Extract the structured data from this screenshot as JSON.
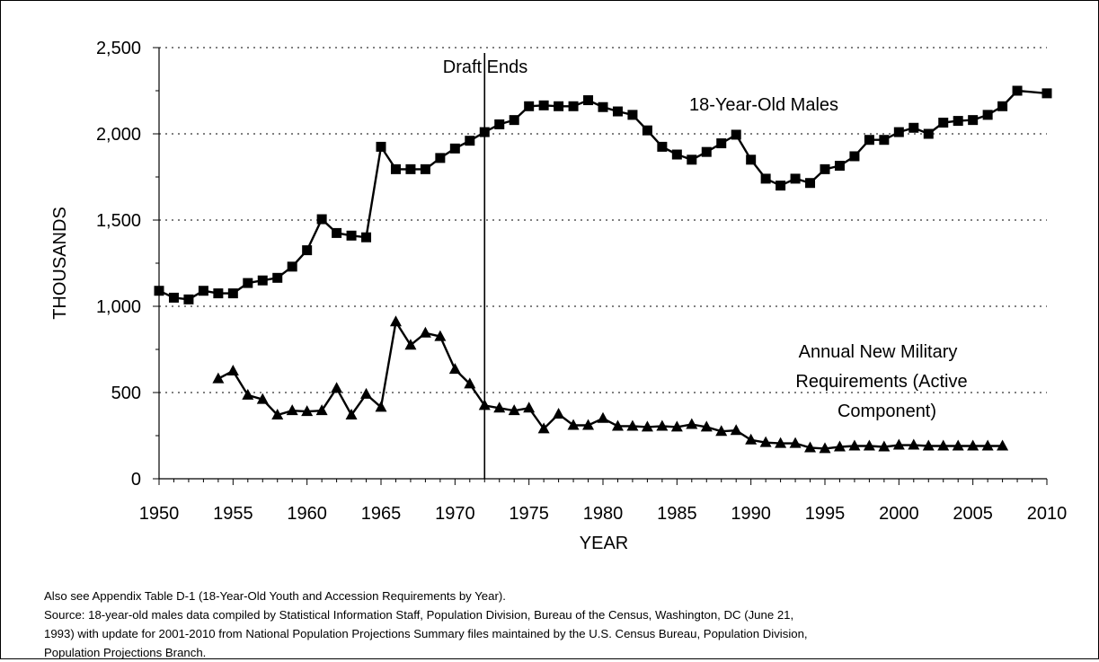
{
  "chart_data": {
    "type": "line",
    "xlabel": "YEAR",
    "ylabel": "THOUSANDS",
    "xlim": [
      1950,
      2010
    ],
    "ylim": [
      0,
      2500
    ],
    "x_ticks": [
      1950,
      1955,
      1960,
      1965,
      1970,
      1975,
      1980,
      1985,
      1990,
      1995,
      2000,
      2005,
      2010
    ],
    "x_tick_labels": [
      "1950",
      "1955",
      "1960",
      "1965",
      "1970",
      "1975",
      "1980",
      "1985",
      "1990",
      "1995",
      "2000",
      "2005",
      "2010"
    ],
    "y_ticks": [
      0,
      500,
      1000,
      1500,
      2000,
      2500
    ],
    "y_tick_labels": [
      "0",
      "500",
      "1,000",
      "1,500",
      "2,000",
      "2,500"
    ],
    "grid": "horizontal dotted",
    "vertical_marker": {
      "x": 1972,
      "label": "Draft Ends"
    },
    "series": [
      {
        "name": "18-Year-Old Males",
        "marker": "square",
        "x": [
          1950,
          1951,
          1952,
          1953,
          1954,
          1955,
          1956,
          1957,
          1958,
          1959,
          1960,
          1961,
          1962,
          1963,
          1964,
          1965,
          1966,
          1967,
          1968,
          1969,
          1970,
          1971,
          1972,
          1973,
          1974,
          1975,
          1976,
          1977,
          1978,
          1979,
          1980,
          1981,
          1982,
          1983,
          1984,
          1985,
          1986,
          1987,
          1988,
          1989,
          1990,
          1991,
          1992,
          1993,
          1994,
          1995,
          1996,
          1997,
          1998,
          1999,
          2000,
          2001,
          2002,
          2003,
          2004,
          2005,
          2006,
          2007,
          2008,
          2010
        ],
        "values": [
          1090,
          1050,
          1040,
          1090,
          1075,
          1075,
          1135,
          1150,
          1165,
          1230,
          1325,
          1505,
          1425,
          1410,
          1400,
          1925,
          1795,
          1795,
          1795,
          1860,
          1915,
          1960,
          2010,
          2055,
          2080,
          2160,
          2165,
          2160,
          2160,
          2195,
          2155,
          2130,
          2110,
          2020,
          1925,
          1880,
          1850,
          1895,
          1945,
          1995,
          1850,
          1740,
          1700,
          1740,
          1715,
          1795,
          1815,
          1870,
          1965,
          1965,
          2010,
          2035,
          2000,
          2065,
          2075,
          2080,
          2110,
          2160,
          2250,
          2235
        ]
      },
      {
        "name": "Annual New Military Requirements (Active Component)",
        "marker": "triangle",
        "x": [
          1954,
          1955,
          1956,
          1957,
          1958,
          1959,
          1960,
          1961,
          1962,
          1963,
          1964,
          1965,
          1966,
          1967,
          1968,
          1969,
          1970,
          1971,
          1972,
          1973,
          1974,
          1975,
          1976,
          1977,
          1978,
          1979,
          1980,
          1981,
          1982,
          1983,
          1984,
          1985,
          1986,
          1987,
          1988,
          1989,
          1990,
          1991,
          1992,
          1993,
          1994,
          1995,
          1996,
          1997,
          1998,
          1999,
          2000,
          2001,
          2002,
          2003,
          2004,
          2005,
          2006,
          2007
        ],
        "values": [
          580,
          625,
          485,
          460,
          370,
          395,
          390,
          395,
          525,
          370,
          490,
          415,
          910,
          775,
          845,
          825,
          635,
          550,
          425,
          410,
          395,
          410,
          290,
          375,
          310,
          310,
          350,
          305,
          305,
          300,
          305,
          300,
          315,
          300,
          275,
          280,
          225,
          210,
          205,
          205,
          180,
          175,
          185,
          190,
          190,
          185,
          195,
          195,
          190,
          190,
          190,
          190,
          190,
          190
        ]
      }
    ],
    "annotations": {
      "males_label": "18-Year-Old Males",
      "military_label": [
        "Annual New Military",
        "Requirements (Active",
        "Component)"
      ]
    }
  },
  "notes": {
    "line1": "Also see Appendix Table D-1 (18-Year-Old Youth and Accession Requirements by Year).",
    "line2": "Source:  18-year-old males data compiled by Statistical Information Staff, Population Division, Bureau of the Census, Washington, DC (June 21,",
    "line3": "1993) with update for 2001-2010 from National Population Projections Summary files maintained by the U.S. Census Bureau, Population Division,",
    "line4": "Population Projections Branch."
  }
}
